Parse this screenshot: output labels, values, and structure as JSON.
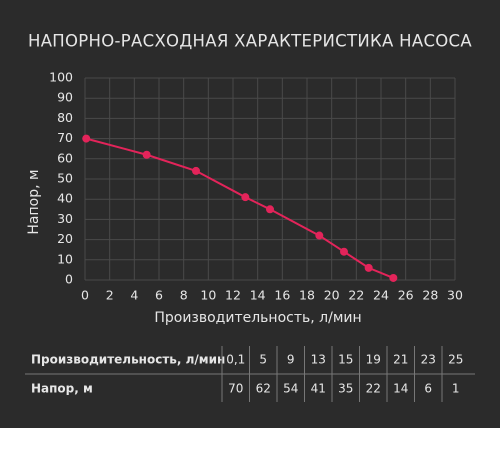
{
  "chart_data": {
    "type": "line",
    "title": "НАПОРНО-РАСХОДНАЯ ХАРАКТЕРИСТИКА НАСОСА",
    "x_label": "Производительность, л/мин",
    "y_label": "Напор, м",
    "x": [
      0.1,
      5,
      9,
      13,
      15,
      19,
      21,
      23,
      25
    ],
    "series": [
      {
        "name": "Напор",
        "color": "#e3245a",
        "values": [
          70,
          62,
          54,
          41,
          35,
          22,
          14,
          6,
          1
        ]
      }
    ],
    "xlim": [
      0,
      30
    ],
    "xticks": [
      0,
      2,
      4,
      6,
      8,
      10,
      12,
      14,
      16,
      18,
      20,
      22,
      24,
      26,
      28,
      30
    ],
    "ylim": [
      0,
      100
    ],
    "yticks": [
      0,
      10,
      20,
      30,
      40,
      50,
      60,
      70,
      80,
      90,
      100
    ],
    "grid": true
  },
  "table": {
    "rows": [
      [
        "Производительность, л/мин",
        "0,1",
        "5",
        "9",
        "13",
        "15",
        "19",
        "21",
        "23",
        "25"
      ],
      [
        "Напор, м",
        "70",
        "62",
        "54",
        "41",
        "35",
        "22",
        "14",
        "6",
        "1"
      ]
    ]
  }
}
